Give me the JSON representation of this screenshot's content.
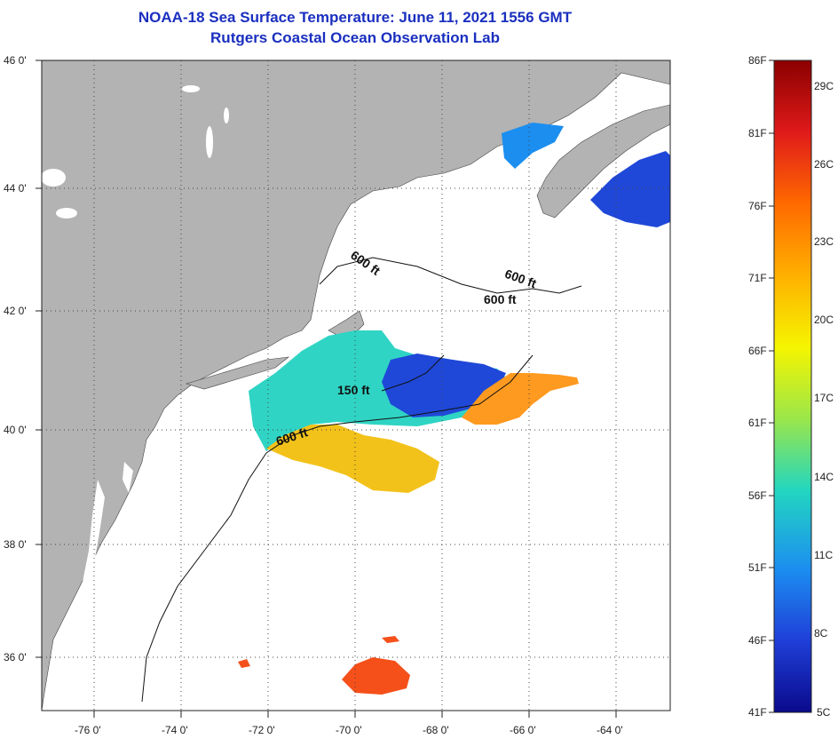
{
  "title_line1": "NOAA-18 Sea Surface Temperature:  June 11, 2021 1556 GMT",
  "title_line2": "Rutgers Coastal Ocean Observation Lab",
  "lat_labels": [
    "46 0'",
    "44 0'",
    "42 0'",
    "40 0'",
    "38 0'",
    "36 0'"
  ],
  "lon_labels": [
    "-76 0'",
    "-74 0'",
    "-72 0'",
    "-70 0'",
    "-68 0'",
    "-66 0'",
    "-64 0'"
  ],
  "contours": [
    {
      "label": "600 ft"
    },
    {
      "label": "600 ft"
    },
    {
      "label": "600 ft"
    },
    {
      "label": "150 ft"
    },
    {
      "label": "600 ft"
    }
  ],
  "colorbar": {
    "f_labels": [
      "86F",
      "81F",
      "76F",
      "71F",
      "66F",
      "61F",
      "56F",
      "51F",
      "46F",
      "41F"
    ],
    "c_labels": [
      "29C",
      "26C",
      "23C",
      "20C",
      "17C",
      "14C",
      "11C",
      "8C",
      "5C"
    ],
    "colors": [
      "#8b0000",
      "#e01a1a",
      "#ff6a00",
      "#ffb000",
      "#f5f500",
      "#9be64a",
      "#22d6c0",
      "#1c8ef0",
      "#1f3fd8",
      "#0a0a8c"
    ]
  },
  "map_colors": {
    "land": "#b3b3b3",
    "warm": "#ff9a20",
    "yellow": "#f3c21a",
    "cyan": "#2fd4c4",
    "blue": "#1f48d8",
    "red": "#f5501a"
  }
}
